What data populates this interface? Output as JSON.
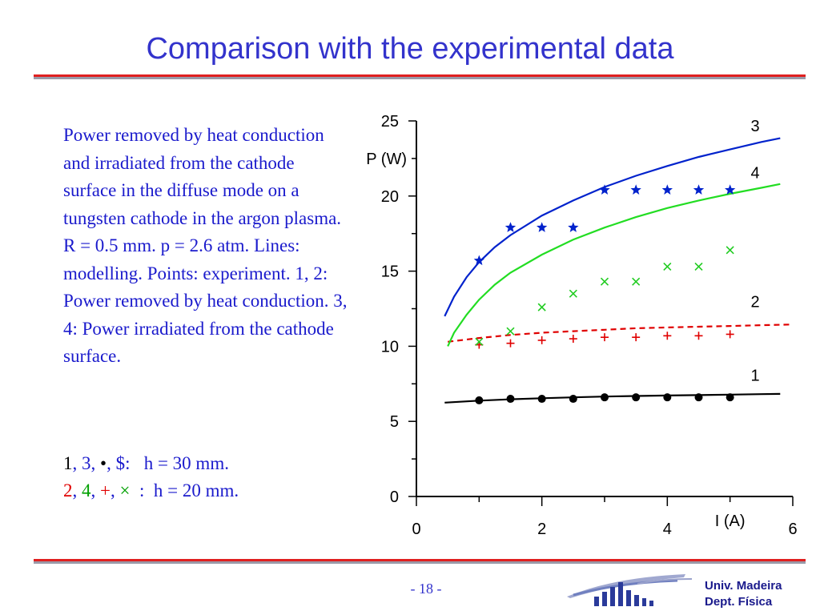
{
  "slide": {
    "title": "Comparison with the experimental data",
    "description": "Power removed by heat conduction and irradiated from the cathode surface in the diffuse mode on a tungsten cathode in the argon plasma. R = 0.5 mm. p = 2.6 atm. Lines: modelling. Points: experiment. 1, 2: Power removed by heat conduction. 3, 4: Power irradiated from the cathode surface.",
    "legend_line1": {
      "n1": "1",
      "sep1": ", ",
      "n3": "3",
      "sep2": ", ",
      "dot": "•",
      "sep3": ", ",
      "sym": "$",
      "rest": ":   h = 30 mm."
    },
    "legend_line2": {
      "n2": "2",
      "sep1": ", ",
      "n4": "4",
      "sep2": ", ",
      "plus": "+",
      "sep3": ", ",
      "times": "×",
      "rest": "  :  h = 20 mm."
    },
    "page_number": "- 18 -",
    "footer": {
      "line1": "Univ. Madeira",
      "line2": "Dept. Física"
    },
    "colors": {
      "title": "#3333cc",
      "text": "#1a1acc",
      "rule_red": "#e02020",
      "rule_gray": "#9a9aa8"
    }
  },
  "chart_data": {
    "type": "line",
    "xlabel": "I (A)",
    "ylabel": "P (W)",
    "xlim": [
      0,
      6
    ],
    "ylim": [
      0,
      25
    ],
    "x_ticks": [
      "0",
      "2",
      "4",
      "6"
    ],
    "y_ticks": [
      "0",
      "5",
      "10",
      "15",
      "20",
      "25"
    ],
    "series": [
      {
        "name": "1",
        "kind": "line",
        "style": "solid",
        "color": "#000000",
        "x": [
          0.45,
          1.0,
          1.5,
          2.0,
          2.5,
          3.0,
          3.5,
          4.0,
          4.5,
          5.0,
          5.5,
          5.8
        ],
        "y": [
          6.25,
          6.38,
          6.47,
          6.54,
          6.6,
          6.65,
          6.69,
          6.72,
          6.75,
          6.78,
          6.81,
          6.83
        ]
      },
      {
        "name": "2",
        "kind": "line",
        "style": "dashed",
        "color": "#e00000",
        "x": [
          0.5,
          1.0,
          1.5,
          2.0,
          2.5,
          3.0,
          3.5,
          4.0,
          4.5,
          5.0,
          5.5,
          6.0
        ],
        "y": [
          10.3,
          10.55,
          10.75,
          10.9,
          11.0,
          11.1,
          11.2,
          11.25,
          11.3,
          11.35,
          11.4,
          11.45
        ]
      },
      {
        "name": "3",
        "kind": "line",
        "style": "solid",
        "color": "#0022cc",
        "x": [
          0.45,
          0.6,
          0.8,
          1.0,
          1.25,
          1.5,
          2.0,
          2.5,
          3.0,
          3.5,
          4.0,
          4.5,
          5.0,
          5.5,
          5.8
        ],
        "y": [
          12.0,
          13.3,
          14.6,
          15.6,
          16.6,
          17.4,
          18.7,
          19.7,
          20.6,
          21.35,
          22.0,
          22.6,
          23.1,
          23.6,
          23.85
        ]
      },
      {
        "name": "4",
        "kind": "line",
        "style": "solid",
        "color": "#22dd22",
        "x": [
          0.5,
          0.6,
          0.8,
          1.0,
          1.25,
          1.5,
          2.0,
          2.5,
          3.0,
          3.5,
          4.0,
          4.5,
          5.0,
          5.5,
          5.8
        ],
        "y": [
          10.0,
          10.9,
          12.1,
          13.1,
          14.1,
          14.9,
          16.1,
          17.1,
          17.9,
          18.6,
          19.2,
          19.7,
          20.15,
          20.55,
          20.8
        ]
      },
      {
        "name": "1",
        "kind": "points",
        "marker": "dot",
        "color": "#000000",
        "x": [
          1.0,
          1.5,
          2.0,
          2.5,
          3.0,
          3.5,
          4.0,
          4.5,
          5.0
        ],
        "y": [
          6.4,
          6.5,
          6.5,
          6.5,
          6.6,
          6.6,
          6.6,
          6.6,
          6.6
        ]
      },
      {
        "name": "2",
        "kind": "points",
        "marker": "plus",
        "color": "#e00000",
        "x": [
          1.0,
          1.5,
          2.0,
          2.5,
          3.0,
          3.5,
          4.0,
          4.5,
          5.0
        ],
        "y": [
          10.1,
          10.2,
          10.4,
          10.5,
          10.6,
          10.6,
          10.7,
          10.7,
          10.8
        ]
      },
      {
        "name": "3",
        "kind": "points",
        "marker": "star",
        "color": "#0022cc",
        "x": [
          1.0,
          1.5,
          2.0,
          2.5,
          3.0,
          3.5,
          4.0,
          4.5,
          5.0
        ],
        "y": [
          15.7,
          17.9,
          17.9,
          17.9,
          20.4,
          20.4,
          20.4,
          20.4,
          20.4
        ]
      },
      {
        "name": "4",
        "kind": "points",
        "marker": "cross",
        "color": "#22cc22",
        "x": [
          1.0,
          1.5,
          2.0,
          2.5,
          3.0,
          3.5,
          4.0,
          4.5,
          5.0
        ],
        "y": [
          10.3,
          11.0,
          12.6,
          13.5,
          14.3,
          14.3,
          15.3,
          15.3,
          16.4
        ]
      }
    ],
    "curve_labels": [
      {
        "text": "3",
        "x": 5.4,
        "y": 24.3
      },
      {
        "text": "4",
        "x": 5.4,
        "y": 21.2
      },
      {
        "text": "2",
        "x": 5.4,
        "y": 12.6
      },
      {
        "text": "1",
        "x": 5.4,
        "y": 7.7
      }
    ]
  }
}
